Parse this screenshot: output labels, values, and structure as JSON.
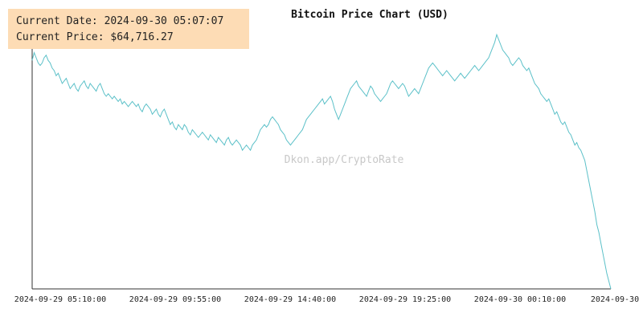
{
  "info_box": {
    "date_label": "Current Date:",
    "date_value": "2024-09-30 05:07:07",
    "price_label": "Current Price:",
    "price_value": "$64,716.27"
  },
  "watermark": "Dkon.app/CryptoRate",
  "colors": {
    "line": "#5bc0c8",
    "axis": "#333333",
    "info_box_bg": "#fddcb5",
    "watermark": "#cccccc",
    "text": "#222222"
  },
  "chart_data": {
    "type": "line",
    "title": "Bitcoin Price Chart (USD)",
    "xlabel": "",
    "ylabel": "",
    "grid": false,
    "legend": "none",
    "x_tick_labels": [
      "2024-09-29 05:10:00",
      "2024-09-29 09:55:00",
      "2024-09-29 14:40:00",
      "2024-09-29 19:25:00",
      "2024-09-30 00:10:00",
      "2024-09-30"
    ],
    "x_range_minutes": [
      0,
      1440
    ],
    "y_range_relative": [
      0,
      100
    ],
    "series": [
      {
        "values": [
          [
            0,
            89
          ],
          [
            3,
            92
          ],
          [
            6,
            90
          ],
          [
            9,
            88
          ],
          [
            12,
            87
          ],
          [
            15,
            88
          ],
          [
            18,
            90
          ],
          [
            21,
            91
          ],
          [
            24,
            89
          ],
          [
            27,
            88
          ],
          [
            30,
            86
          ],
          [
            33,
            85
          ],
          [
            36,
            83
          ],
          [
            39,
            84
          ],
          [
            42,
            82
          ],
          [
            45,
            80
          ],
          [
            48,
            81
          ],
          [
            51,
            82
          ],
          [
            54,
            80
          ],
          [
            57,
            78
          ],
          [
            60,
            79
          ],
          [
            63,
            80
          ],
          [
            66,
            78
          ],
          [
            69,
            77
          ],
          [
            72,
            79
          ],
          [
            75,
            80
          ],
          [
            78,
            81
          ],
          [
            81,
            79
          ],
          [
            84,
            78
          ],
          [
            87,
            80
          ],
          [
            90,
            79
          ],
          [
            93,
            78
          ],
          [
            96,
            77
          ],
          [
            99,
            79
          ],
          [
            102,
            80
          ],
          [
            105,
            78
          ],
          [
            108,
            76
          ],
          [
            111,
            75
          ],
          [
            114,
            76
          ],
          [
            117,
            75
          ],
          [
            120,
            74
          ],
          [
            123,
            75
          ],
          [
            126,
            74
          ],
          [
            129,
            73
          ],
          [
            132,
            74
          ],
          [
            135,
            72
          ],
          [
            138,
            73
          ],
          [
            141,
            72
          ],
          [
            144,
            71
          ],
          [
            147,
            72
          ],
          [
            150,
            73
          ],
          [
            153,
            72
          ],
          [
            156,
            71
          ],
          [
            159,
            72
          ],
          [
            162,
            70
          ],
          [
            165,
            69
          ],
          [
            168,
            71
          ],
          [
            171,
            72
          ],
          [
            174,
            71
          ],
          [
            177,
            70
          ],
          [
            180,
            68
          ],
          [
            183,
            69
          ],
          [
            186,
            70
          ],
          [
            189,
            68
          ],
          [
            192,
            67
          ],
          [
            195,
            69
          ],
          [
            198,
            70
          ],
          [
            201,
            68
          ],
          [
            204,
            66
          ],
          [
            207,
            64
          ],
          [
            210,
            65
          ],
          [
            213,
            63
          ],
          [
            216,
            62
          ],
          [
            219,
            64
          ],
          [
            222,
            63
          ],
          [
            225,
            62
          ],
          [
            228,
            64
          ],
          [
            231,
            63
          ],
          [
            234,
            61
          ],
          [
            237,
            60
          ],
          [
            240,
            62
          ],
          [
            243,
            61
          ],
          [
            246,
            60
          ],
          [
            249,
            59
          ],
          [
            252,
            60
          ],
          [
            255,
            61
          ],
          [
            258,
            60
          ],
          [
            261,
            59
          ],
          [
            264,
            58
          ],
          [
            267,
            60
          ],
          [
            270,
            59
          ],
          [
            273,
            58
          ],
          [
            276,
            57
          ],
          [
            279,
            59
          ],
          [
            282,
            58
          ],
          [
            285,
            57
          ],
          [
            288,
            56
          ],
          [
            291,
            58
          ],
          [
            294,
            59
          ],
          [
            297,
            57
          ],
          [
            300,
            56
          ],
          [
            303,
            57
          ],
          [
            306,
            58
          ],
          [
            309,
            57
          ],
          [
            312,
            56
          ],
          [
            315,
            54
          ],
          [
            318,
            55
          ],
          [
            321,
            56
          ],
          [
            324,
            55
          ],
          [
            327,
            54
          ],
          [
            330,
            56
          ],
          [
            333,
            57
          ],
          [
            336,
            58
          ],
          [
            339,
            60
          ],
          [
            342,
            62
          ],
          [
            345,
            63
          ],
          [
            348,
            64
          ],
          [
            351,
            63
          ],
          [
            354,
            64
          ],
          [
            357,
            66
          ],
          [
            360,
            67
          ],
          [
            363,
            66
          ],
          [
            366,
            65
          ],
          [
            369,
            64
          ],
          [
            372,
            62
          ],
          [
            375,
            61
          ],
          [
            378,
            60
          ],
          [
            381,
            58
          ],
          [
            384,
            57
          ],
          [
            387,
            56
          ],
          [
            390,
            57
          ],
          [
            393,
            58
          ],
          [
            396,
            59
          ],
          [
            399,
            60
          ],
          [
            402,
            61
          ],
          [
            405,
            62
          ],
          [
            408,
            64
          ],
          [
            411,
            66
          ],
          [
            414,
            67
          ],
          [
            417,
            68
          ],
          [
            420,
            69
          ],
          [
            423,
            70
          ],
          [
            426,
            71
          ],
          [
            429,
            72
          ],
          [
            432,
            73
          ],
          [
            435,
            74
          ],
          [
            438,
            72
          ],
          [
            441,
            73
          ],
          [
            444,
            74
          ],
          [
            447,
            75
          ],
          [
            450,
            73
          ],
          [
            453,
            70
          ],
          [
            456,
            68
          ],
          [
            459,
            66
          ],
          [
            462,
            68
          ],
          [
            465,
            70
          ],
          [
            468,
            72
          ],
          [
            471,
            74
          ],
          [
            474,
            76
          ],
          [
            477,
            78
          ],
          [
            480,
            79
          ],
          [
            483,
            80
          ],
          [
            486,
            81
          ],
          [
            489,
            79
          ],
          [
            492,
            78
          ],
          [
            495,
            77
          ],
          [
            498,
            76
          ],
          [
            501,
            75
          ],
          [
            504,
            77
          ],
          [
            507,
            79
          ],
          [
            510,
            78
          ],
          [
            513,
            76
          ],
          [
            516,
            75
          ],
          [
            519,
            74
          ],
          [
            522,
            73
          ],
          [
            525,
            74
          ],
          [
            528,
            75
          ],
          [
            531,
            76
          ],
          [
            534,
            78
          ],
          [
            537,
            80
          ],
          [
            540,
            81
          ],
          [
            543,
            80
          ],
          [
            546,
            79
          ],
          [
            549,
            78
          ],
          [
            552,
            79
          ],
          [
            555,
            80
          ],
          [
            558,
            79
          ],
          [
            561,
            77
          ],
          [
            564,
            75
          ],
          [
            567,
            76
          ],
          [
            570,
            77
          ],
          [
            573,
            78
          ],
          [
            576,
            77
          ],
          [
            579,
            76
          ],
          [
            582,
            78
          ],
          [
            585,
            80
          ],
          [
            588,
            82
          ],
          [
            591,
            84
          ],
          [
            594,
            86
          ],
          [
            597,
            87
          ],
          [
            600,
            88
          ],
          [
            603,
            87
          ],
          [
            606,
            86
          ],
          [
            609,
            85
          ],
          [
            612,
            84
          ],
          [
            615,
            83
          ],
          [
            618,
            84
          ],
          [
            621,
            85
          ],
          [
            624,
            84
          ],
          [
            627,
            83
          ],
          [
            630,
            82
          ],
          [
            633,
            81
          ],
          [
            636,
            82
          ],
          [
            639,
            83
          ],
          [
            642,
            84
          ],
          [
            645,
            83
          ],
          [
            648,
            82
          ],
          [
            651,
            83
          ],
          [
            654,
            84
          ],
          [
            657,
            85
          ],
          [
            660,
            86
          ],
          [
            663,
            87
          ],
          [
            666,
            86
          ],
          [
            669,
            85
          ],
          [
            672,
            86
          ],
          [
            675,
            87
          ],
          [
            678,
            88
          ],
          [
            681,
            89
          ],
          [
            684,
            90
          ],
          [
            687,
            92
          ],
          [
            690,
            94
          ],
          [
            693,
            96
          ],
          [
            696,
            99
          ],
          [
            699,
            97
          ],
          [
            702,
            95
          ],
          [
            705,
            93
          ],
          [
            708,
            92
          ],
          [
            711,
            91
          ],
          [
            714,
            90
          ],
          [
            717,
            88
          ],
          [
            720,
            87
          ],
          [
            723,
            88
          ],
          [
            726,
            89
          ],
          [
            729,
            90
          ],
          [
            732,
            89
          ],
          [
            735,
            87
          ],
          [
            738,
            86
          ],
          [
            741,
            85
          ],
          [
            744,
            86
          ],
          [
            747,
            84
          ],
          [
            750,
            82
          ],
          [
            753,
            80
          ],
          [
            756,
            79
          ],
          [
            759,
            78
          ],
          [
            762,
            76
          ],
          [
            765,
            75
          ],
          [
            768,
            74
          ],
          [
            771,
            73
          ],
          [
            774,
            74
          ],
          [
            777,
            72
          ],
          [
            780,
            70
          ],
          [
            783,
            68
          ],
          [
            786,
            69
          ],
          [
            789,
            67
          ],
          [
            792,
            65
          ],
          [
            795,
            64
          ],
          [
            798,
            65
          ],
          [
            801,
            63
          ],
          [
            804,
            61
          ],
          [
            807,
            60
          ],
          [
            810,
            58
          ],
          [
            813,
            56
          ],
          [
            816,
            57
          ],
          [
            819,
            55
          ],
          [
            822,
            54
          ],
          [
            825,
            52
          ],
          [
            828,
            50
          ],
          [
            831,
            46
          ],
          [
            834,
            42
          ],
          [
            837,
            38
          ],
          [
            840,
            34
          ],
          [
            843,
            30
          ],
          [
            846,
            25
          ],
          [
            849,
            22
          ],
          [
            852,
            18
          ],
          [
            855,
            14
          ],
          [
            858,
            10
          ],
          [
            861,
            6
          ],
          [
            864,
            3
          ],
          [
            867,
            0
          ]
        ]
      }
    ]
  }
}
